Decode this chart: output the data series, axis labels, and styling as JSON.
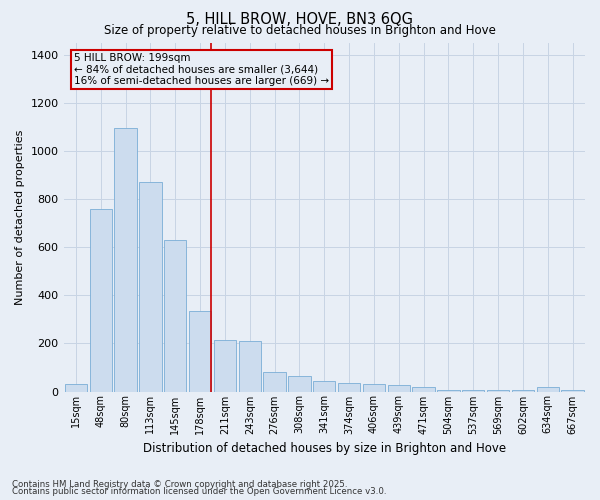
{
  "title1": "5, HILL BROW, HOVE, BN3 6QG",
  "title2": "Size of property relative to detached houses in Brighton and Hove",
  "xlabel": "Distribution of detached houses by size in Brighton and Hove",
  "ylabel": "Number of detached properties",
  "categories": [
    "15sqm",
    "48sqm",
    "80sqm",
    "113sqm",
    "145sqm",
    "178sqm",
    "211sqm",
    "243sqm",
    "276sqm",
    "308sqm",
    "341sqm",
    "374sqm",
    "406sqm",
    "439sqm",
    "471sqm",
    "504sqm",
    "537sqm",
    "569sqm",
    "602sqm",
    "634sqm",
    "667sqm"
  ],
  "values": [
    30,
    760,
    1095,
    870,
    630,
    335,
    215,
    210,
    80,
    65,
    45,
    35,
    30,
    25,
    20,
    5,
    5,
    5,
    5,
    20,
    5
  ],
  "bar_color": "#ccdcee",
  "bar_edge_color": "#7aaed6",
  "grid_color": "#c8d4e4",
  "background_color": "#e8eef6",
  "annotation_text": "5 HILL BROW: 199sqm\n← 84% of detached houses are smaller (3,644)\n16% of semi-detached houses are larger (669) →",
  "vline_x": 5.43,
  "vline_color": "#cc0000",
  "ylim": [
    0,
    1450
  ],
  "yticks": [
    0,
    200,
    400,
    600,
    800,
    1000,
    1200,
    1400
  ],
  "annotation_box_color": "#cc0000",
  "footer1": "Contains HM Land Registry data © Crown copyright and database right 2025.",
  "footer2": "Contains public sector information licensed under the Open Government Licence v3.0."
}
